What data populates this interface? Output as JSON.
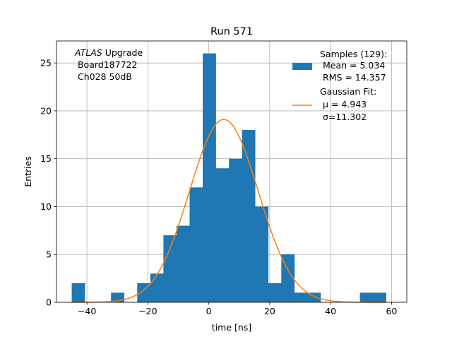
{
  "chart_data": {
    "type": "bar",
    "title": "Run 571",
    "xlabel": "time [ns]",
    "ylabel": "Entries",
    "xlim": [
      -50,
      65
    ],
    "ylim": [
      0,
      27.3
    ],
    "grid": true,
    "xticks": [
      -40,
      -20,
      0,
      20,
      40,
      60
    ],
    "yticks": [
      0,
      5,
      10,
      15,
      20,
      25
    ],
    "histogram": {
      "name": "Samples (129):",
      "bin_edges": [
        -45.0,
        -40.7,
        -36.4,
        -32.1,
        -27.8,
        -23.5,
        -19.2,
        -14.9,
        -10.6,
        -6.3,
        -2.0,
        2.3,
        6.6,
        10.9,
        15.2,
        19.5,
        23.8,
        28.1,
        32.4,
        36.7,
        41.0,
        45.3,
        49.6,
        53.9,
        58.2
      ],
      "counts": [
        2,
        0,
        0,
        1,
        0,
        2,
        3,
        7,
        8,
        12,
        26,
        14,
        15,
        18,
        10,
        2,
        5,
        1,
        1,
        0,
        0,
        0,
        1,
        1
      ],
      "color": "#1f77b4"
    },
    "fit": {
      "name": "Gaussian Fit:",
      "amplitude": 19.1,
      "mu": 4.943,
      "sigma": 11.302,
      "x_range": [
        -45,
        58.2
      ],
      "color": "#ff7f0e"
    },
    "annotation": {
      "line1_italic": "ATLAS",
      "line1_rest": " Upgrade",
      "line2": " Board187722",
      "line3": " Ch028 50dB"
    },
    "legend": {
      "placement": "upper right",
      "samples_title": "Samples (129):",
      "samples_mean": " Mean = 5.034",
      "samples_rms": " RMS = 14.357",
      "fit_title": "Gaussian Fit:",
      "fit_mu": " μ = 4.943",
      "fit_sigma": " σ=11.302"
    }
  }
}
